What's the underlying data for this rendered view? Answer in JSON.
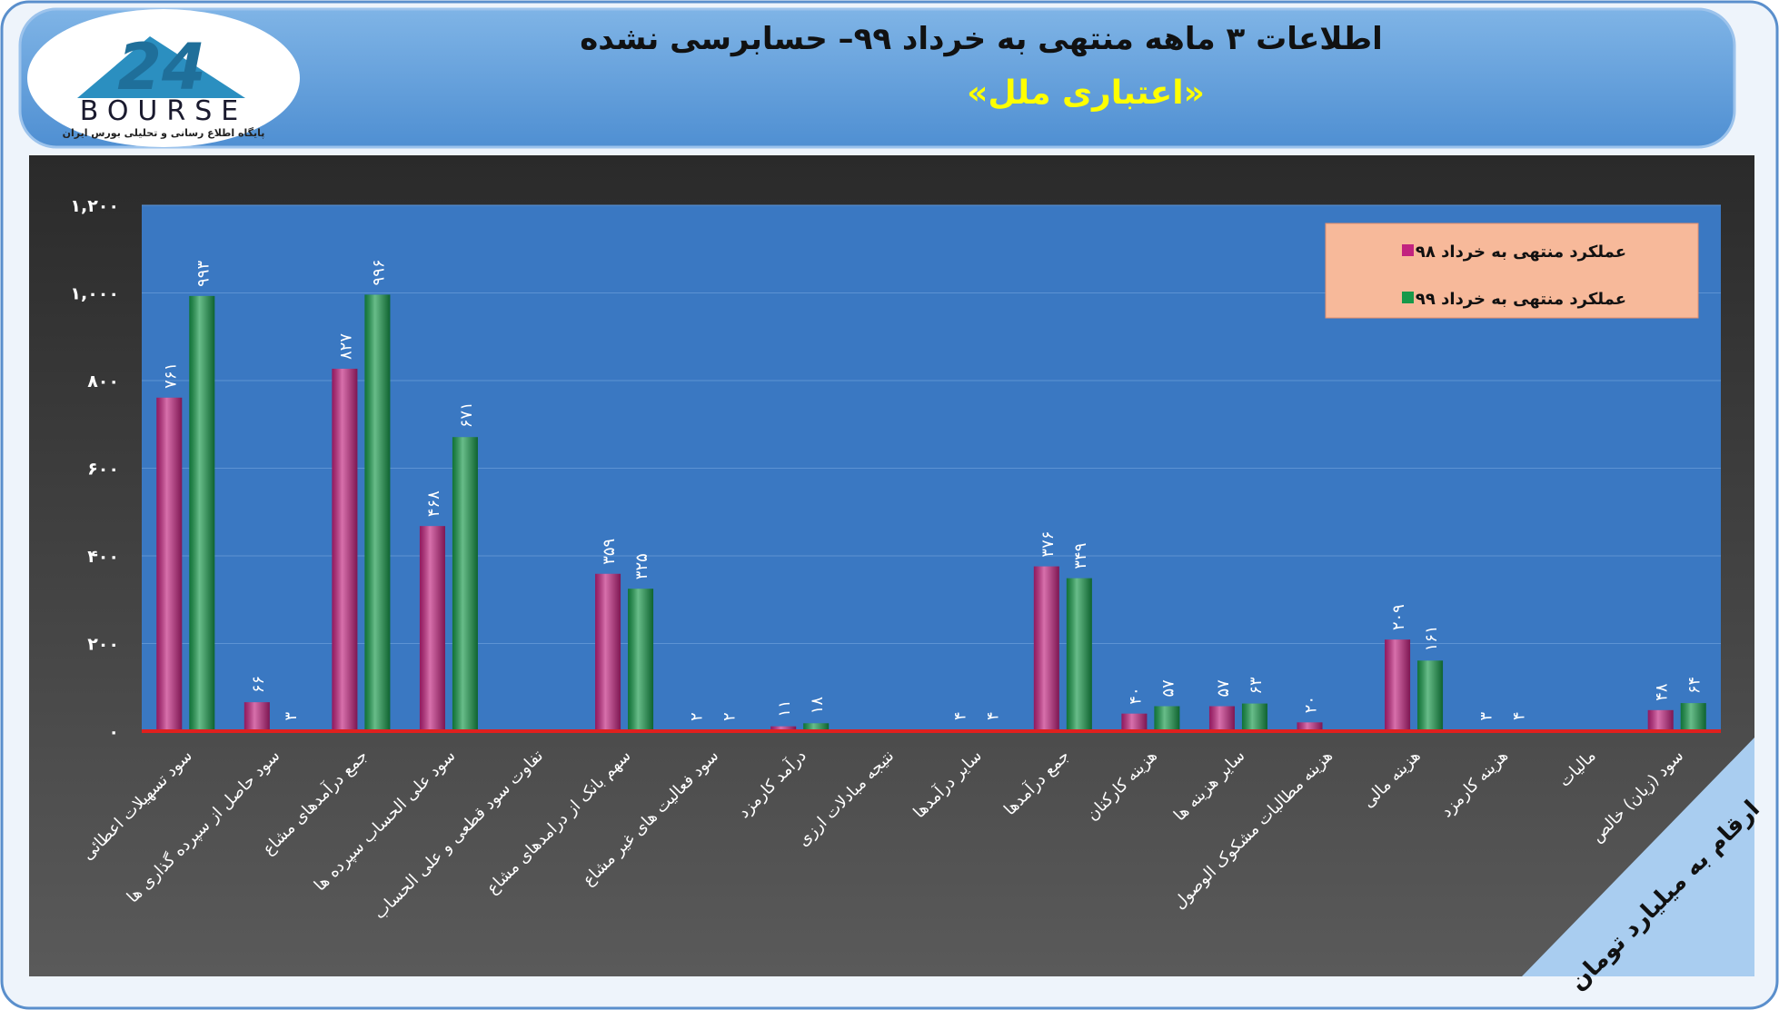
{
  "logo": {
    "number": "24",
    "text": "BOURSE",
    "caption": "پایگاه اطلاع رسانی و تحلیلی بورس ایران"
  },
  "chart_data": {
    "type": "bar",
    "title": "اطلاعات ۳ ماهه منتهی به خرداد ۹۹– حسابرسی نشده",
    "subtitle": "«اعتباری ملل»",
    "note": "ارقام به میلیارد تومان",
    "categories": [
      "سود تسهیلات اعطائی",
      "سود حاصل از سپرده گذاری ها",
      "جمع درآمدهای مشاع",
      "سود علی الحساب سپرده ها",
      "تفاوت سود قطعی و علی الحساب",
      "سهم بانک از درامدهای مشاع",
      "سود فعالیت های غیر مشاع",
      "درآمد کارمزد",
      "نتیجه مبادلات ارزی",
      "سایر درآمدها",
      "جمع درآمدها",
      "هزینه کارکنان",
      "سایر هزینه ها",
      "هزینه مطالبات مشکوک الوصول",
      "هزینه مالی",
      "هزینه کارمزد",
      "مالیات",
      "سود (زیان) خالص"
    ],
    "series": [
      {
        "name": "عملکرد منتهی به خرداد ۹۸",
        "color": "#c2237f",
        "values": [
          761,
          66,
          827,
          468,
          null,
          359,
          2,
          11,
          null,
          4,
          376,
          40,
          57,
          20,
          209,
          3,
          null,
          48
        ],
        "value_labels": [
          "۷۶۱",
          "۶۶",
          "۸۲۷",
          "۴۶۸",
          null,
          "۳۵۹",
          "۲",
          "۱۱",
          null,
          "۴",
          "۳۷۶",
          "۴۰",
          "۵۷",
          "۲۰",
          "۲۰۹",
          "۳",
          null,
          "۴۸"
        ]
      },
      {
        "name": "عملکرد منتهی به خرداد ۹۹",
        "color": "#17994a",
        "values": [
          993,
          3,
          996,
          671,
          null,
          325,
          2,
          18,
          null,
          4,
          349,
          57,
          63,
          null,
          161,
          4,
          null,
          64
        ],
        "value_labels": [
          "۹۹۳",
          "۳",
          "۹۹۶",
          "۶۷۱",
          null,
          "۳۲۵",
          "۲",
          "۱۸",
          null,
          "۴",
          "۳۴۹",
          "۵۷",
          "۶۳",
          null,
          "۱۶۱",
          "۴",
          null,
          "۶۴"
        ]
      }
    ],
    "ylim": [
      0,
      1200
    ],
    "yticks": [
      {
        "value": 0,
        "label": "۰"
      },
      {
        "value": 200,
        "label": "۲۰۰"
      },
      {
        "value": 400,
        "label": "۴۰۰"
      },
      {
        "value": 600,
        "label": "۶۰۰"
      },
      {
        "value": 800,
        "label": "۸۰۰"
      },
      {
        "value": 1000,
        "label": "۱,۰۰۰"
      },
      {
        "value": 1200,
        "label": "۱,۲۰۰"
      }
    ],
    "grid": true,
    "legend": "top-right"
  }
}
